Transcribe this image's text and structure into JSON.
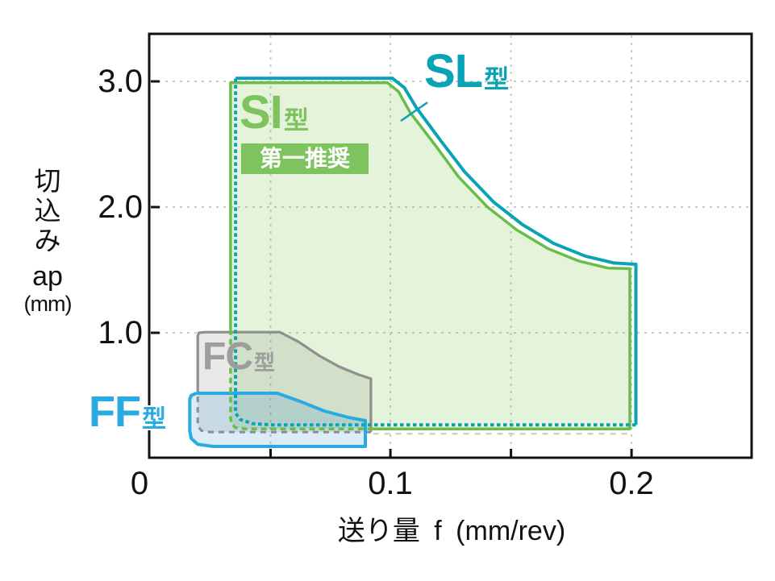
{
  "axes": {
    "x": {
      "title": "送り量 f (mm/rev)",
      "range": [
        0,
        0.2497
      ],
      "tick_labels": [
        {
          "value": 0,
          "label": "0"
        },
        {
          "value": 0.0997,
          "label": "0.1"
        },
        {
          "value": 0.1997,
          "label": "0.2"
        }
      ],
      "tick_marks": [
        0.05,
        0.0997,
        0.1497,
        0.1997
      ],
      "gridlines": [
        0.05,
        0.0997,
        0.1497,
        0.1997
      ]
    },
    "y": {
      "title_vertical": [
        "切",
        "込",
        "み"
      ],
      "title_symbol": "ap",
      "title_unit": "(mm)",
      "range": [
        0,
        3.37
      ],
      "tick_labels": [
        {
          "value": 1,
          "label": "1.0"
        },
        {
          "value": 2,
          "label": "2.0"
        },
        {
          "value": 3,
          "label": "3.0"
        }
      ],
      "tick_marks": [
        1,
        2,
        3
      ],
      "gridlines": [
        1,
        2,
        3
      ]
    }
  },
  "chart_data": {
    "type": "area",
    "title": "",
    "xlabel": "送り量 f (mm/rev)",
    "ylabel": "切込み ap (mm)",
    "xlim": [
      0,
      0.25
    ],
    "ylim": [
      0,
      3.37
    ],
    "grid": true,
    "description": "Recommended cutting ranges (feed f vs depth of cut ap) for insert chipbreaker types",
    "regions": [
      {
        "id": "SI",
        "label": "SI型",
        "note": "第一推奨",
        "stroke": "#6bbd4a",
        "fill": "rgba(122,193,67,0.20)",
        "stroke_width": 3.5,
        "dash": "7 5",
        "f_range": [
          0.033,
          0.199
        ],
        "ap_range": [
          0.24,
          2.99
        ],
        "segments": [
          {
            "dashed": false,
            "pts": [
              [
                0.0334,
                1.02
              ],
              [
                0.0334,
                2.99
              ],
              [
                0.0985,
                2.99
              ],
              [
                0.103,
                2.92
              ],
              [
                0.108,
                2.75
              ],
              [
                0.118,
                2.5
              ],
              [
                0.128,
                2.24
              ],
              [
                0.14,
                2.0
              ],
              [
                0.152,
                1.82
              ],
              [
                0.165,
                1.67
              ],
              [
                0.178,
                1.57
              ],
              [
                0.19,
                1.515
              ],
              [
                0.199,
                1.51
              ],
              [
                0.199,
                0.235
              ],
              [
                0.0925,
                0.235
              ]
            ]
          },
          {
            "dashed": true,
            "pts": [
              [
                0.0925,
                0.235
              ],
              [
                0.04,
                0.235
              ],
              [
                0.0355,
                0.245
              ],
              [
                0.0338,
                0.275
              ],
              [
                0.0334,
                0.32
              ],
              [
                0.0334,
                1.02
              ]
            ]
          }
        ]
      },
      {
        "id": "SL",
        "label": "SL型",
        "stroke": "#0aa2b5",
        "fill": "none",
        "stroke_width": 4,
        "dash": "4.5 3.5",
        "f_range": [
          0.0355,
          0.2015
        ],
        "ap_range": [
          0.27,
          3.02
        ],
        "segments": [
          {
            "dashed": false,
            "pts": [
              [
                0.0355,
                3.025
              ],
              [
                0.1005,
                3.025
              ],
              [
                0.1055,
                2.95
              ],
              [
                0.1105,
                2.79
              ],
              [
                0.1205,
                2.53
              ],
              [
                0.1305,
                2.28
              ],
              [
                0.1425,
                2.04
              ],
              [
                0.1545,
                1.86
              ],
              [
                0.1675,
                1.71
              ],
              [
                0.1805,
                1.61
              ],
              [
                0.1925,
                1.555
              ],
              [
                0.2015,
                1.545
              ],
              [
                0.2015,
                0.268
              ]
            ]
          },
          {
            "dashed": true,
            "pts": [
              [
                0.2015,
                0.268
              ],
              [
                0.05,
                0.268
              ],
              [
                0.0425,
                0.278
              ],
              [
                0.0375,
                0.31
              ],
              [
                0.0355,
                0.36
              ],
              [
                0.0355,
                3.025
              ]
            ]
          }
        ]
      },
      {
        "id": "FC",
        "label": "FC型",
        "stroke": "#8f8f8f",
        "fill": "rgba(120,120,120,0.16)",
        "stroke_width": 3.2,
        "dash": "7 6",
        "f_range": [
          0.0198,
          0.0916
        ],
        "ap_range": [
          0.21,
          1.0
        ],
        "segments": [
          {
            "dashed": false,
            "pts": [
              [
                0.0198,
                0.513
              ],
              [
                0.0198,
                0.975
              ],
              [
                0.0203,
                1.0
              ],
              [
                0.0225,
                1.005
              ],
              [
                0.0538,
                1.005
              ],
              [
                0.0615,
                0.93
              ],
              [
                0.07,
                0.82
              ],
              [
                0.0785,
                0.73
              ],
              [
                0.0865,
                0.667
              ],
              [
                0.0916,
                0.635
              ],
              [
                0.0916,
                0.21
              ]
            ]
          },
          {
            "dashed": true,
            "pts": [
              [
                0.0916,
                0.21
              ],
              [
                0.025,
                0.21
              ],
              [
                0.0213,
                0.222
              ],
              [
                0.02,
                0.253
              ],
              [
                0.0198,
                0.29
              ],
              [
                0.0198,
                0.513
              ]
            ]
          }
        ]
      },
      {
        "id": "FF",
        "label": "FF型",
        "stroke": "#29abe2",
        "fill": "rgba(10,130,205,0.15)",
        "stroke_width": 4,
        "dash": null,
        "f_range": [
          0.0165,
          0.0893
        ],
        "ap_range": [
          0.096,
          0.52
        ],
        "segments": [
          {
            "dashed": false,
            "pts": [
              [
                0.0192,
                0.519
              ],
              [
                0.0528,
                0.519
              ],
              [
                0.0622,
                0.455
              ],
              [
                0.0722,
                0.378
              ],
              [
                0.0823,
                0.327
              ],
              [
                0.0893,
                0.301
              ],
              [
                0.0893,
                0.096
              ],
              [
                0.0262,
                0.096
              ],
              [
                0.0198,
                0.113
              ],
              [
                0.0171,
                0.16
              ],
              [
                0.0165,
                0.22
              ],
              [
                0.0165,
                0.47
              ],
              [
                0.017,
                0.5
              ],
              [
                0.0192,
                0.519
              ]
            ]
          }
        ]
      }
    ],
    "ghost_line": {
      "color": "#ccd3c9",
      "dash": "7 7",
      "width": 2.5,
      "pts": [
        [
          0.0925,
          0.197
        ],
        [
          0.1985,
          0.197
        ]
      ]
    },
    "callout_sl": {
      "color": "#0aa2b5",
      "width": 2.5,
      "pts": [
        [
          0.1151,
          2.833
        ],
        [
          0.104,
          2.686
        ]
      ]
    }
  },
  "labels": {
    "sl": {
      "big": "SL",
      "suffix": "型",
      "color": "#0aa2b5"
    },
    "si": {
      "big": "SI",
      "suffix": "型",
      "color": "#7dc35e"
    },
    "badge": {
      "text": "第一推奨",
      "bg": "#7dc35e",
      "fg": "#ffffff"
    },
    "fc": {
      "big": "FC",
      "suffix": "型",
      "color": "#9d9d9d"
    },
    "ff": {
      "big": "FF",
      "suffix": "型",
      "color": "#29abe2"
    }
  },
  "style": {
    "grid_color": "#c9c9c9",
    "axis_color": "#111111",
    "background": "#ffffff"
  }
}
